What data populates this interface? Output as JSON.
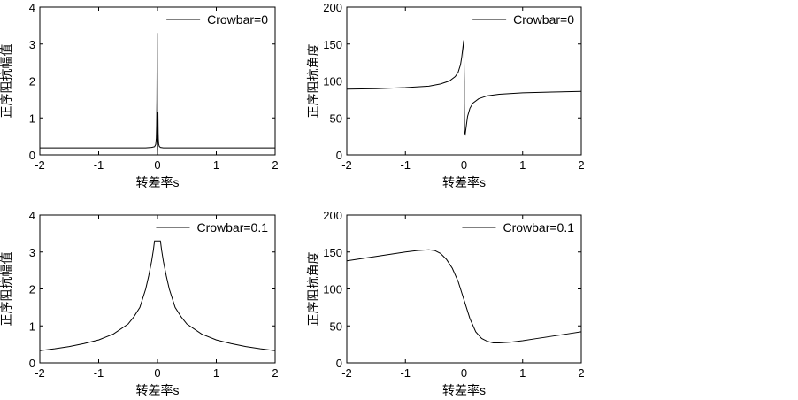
{
  "chart_data": [
    {
      "type": "line",
      "xlabel": "转差率s",
      "ylabel": "正序阻抗幅值",
      "xlim": [
        -2,
        2
      ],
      "ylim": [
        0,
        4
      ],
      "xticks": [
        "-2",
        "-1",
        "0",
        "1",
        "2"
      ],
      "yticks": [
        "0",
        "1",
        "2",
        "3",
        "4"
      ],
      "legend_position": "top-right",
      "series": [
        {
          "name": "Crowbar=0",
          "x": [
            -2,
            -1.5,
            -1,
            -0.5,
            -0.2,
            -0.1,
            -0.05,
            -0.03,
            -0.02,
            -0.015,
            -0.01,
            -0.008,
            -0.006,
            -0.004,
            -0.002,
            0,
            0.002,
            0.004,
            0.006,
            0.008,
            0.01,
            0.012,
            0.015,
            0.02,
            0.03,
            0.05,
            0.1,
            0.2,
            0.5,
            1,
            1.5,
            2
          ],
          "y": [
            0.19,
            0.19,
            0.19,
            0.19,
            0.19,
            0.2,
            0.22,
            0.28,
            0.45,
            0.8,
            1.5,
            2.1,
            2.8,
            3.3,
            2.0,
            0.05,
            0.2,
            0.6,
            1.05,
            1.15,
            0.9,
            0.6,
            0.42,
            0.3,
            0.23,
            0.2,
            0.19,
            0.19,
            0.19,
            0.19,
            0.19,
            0.19
          ],
          "color": "#000000"
        }
      ]
    },
    {
      "type": "line",
      "xlabel": "转差率s",
      "ylabel": "正序阻抗角度",
      "xlim": [
        -2,
        2
      ],
      "ylim": [
        0,
        200
      ],
      "xticks": [
        "-2",
        "-1",
        "0",
        "1",
        "2"
      ],
      "yticks": [
        "0",
        "50",
        "100",
        "150",
        "200"
      ],
      "legend_position": "top-right",
      "series": [
        {
          "name": "Crowbar=0",
          "x": [
            -2,
            -1.5,
            -1,
            -0.6,
            -0.4,
            -0.25,
            -0.15,
            -0.1,
            -0.06,
            -0.04,
            -0.02,
            -0.005,
            0.005,
            0.005,
            0.01,
            0.02,
            0.04,
            0.06,
            0.1,
            0.15,
            0.25,
            0.4,
            0.6,
            1,
            1.5,
            2
          ],
          "y": [
            89,
            89.5,
            91,
            93,
            96,
            100,
            106,
            112,
            122,
            132,
            145,
            155,
            100,
            70,
            30,
            28,
            40,
            52,
            63,
            70,
            76,
            80,
            82,
            84,
            85,
            86
          ],
          "color": "#000000"
        }
      ]
    },
    {
      "type": "line",
      "xlabel": "转差率s",
      "ylabel": "正序阻抗幅值",
      "xlim": [
        -2,
        2
      ],
      "ylim": [
        0,
        4
      ],
      "xticks": [
        "-2",
        "-1",
        "0",
        "1",
        "2"
      ],
      "yticks": [
        "0",
        "1",
        "2",
        "3",
        "4"
      ],
      "legend_position": "top-right",
      "series": [
        {
          "name": "Crowbar=0.1",
          "x": [
            -2,
            -1.75,
            -1.5,
            -1.25,
            -1,
            -0.75,
            -0.5,
            -0.4,
            -0.3,
            -0.2,
            -0.15,
            -0.1,
            -0.07,
            -0.05,
            0.05,
            0.07,
            0.1,
            0.15,
            0.2,
            0.3,
            0.4,
            0.5,
            0.75,
            1,
            1.25,
            1.5,
            1.75,
            2
          ],
          "y": [
            0.33,
            0.38,
            0.44,
            0.52,
            0.62,
            0.78,
            1.05,
            1.25,
            1.5,
            2.0,
            2.35,
            2.75,
            3.05,
            3.3,
            3.3,
            3.05,
            2.75,
            2.35,
            2.0,
            1.5,
            1.25,
            1.05,
            0.78,
            0.62,
            0.52,
            0.44,
            0.38,
            0.33
          ],
          "color": "#000000"
        }
      ]
    },
    {
      "type": "line",
      "xlabel": "转差率s",
      "ylabel": "正序阻抗角度",
      "xlim": [
        -2,
        2
      ],
      "ylim": [
        0,
        200
      ],
      "xticks": [
        "-2",
        "-1",
        "0",
        "1",
        "2"
      ],
      "yticks": [
        "0",
        "50",
        "100",
        "150",
        "200"
      ],
      "legend_position": "top-right",
      "series": [
        {
          "name": "Crowbar=0.1",
          "x": [
            -2,
            -1.75,
            -1.5,
            -1.25,
            -1,
            -0.8,
            -0.6,
            -0.5,
            -0.4,
            -0.3,
            -0.2,
            -0.1,
            0,
            0.1,
            0.2,
            0.3,
            0.4,
            0.5,
            0.6,
            0.8,
            1,
            1.25,
            1.5,
            1.75,
            2
          ],
          "y": [
            138,
            141,
            144,
            147,
            150,
            152,
            153,
            152,
            148,
            140,
            128,
            110,
            85,
            60,
            42,
            33,
            29,
            27,
            27,
            28,
            30,
            33,
            36,
            39,
            42
          ],
          "color": "#000000"
        }
      ]
    }
  ]
}
